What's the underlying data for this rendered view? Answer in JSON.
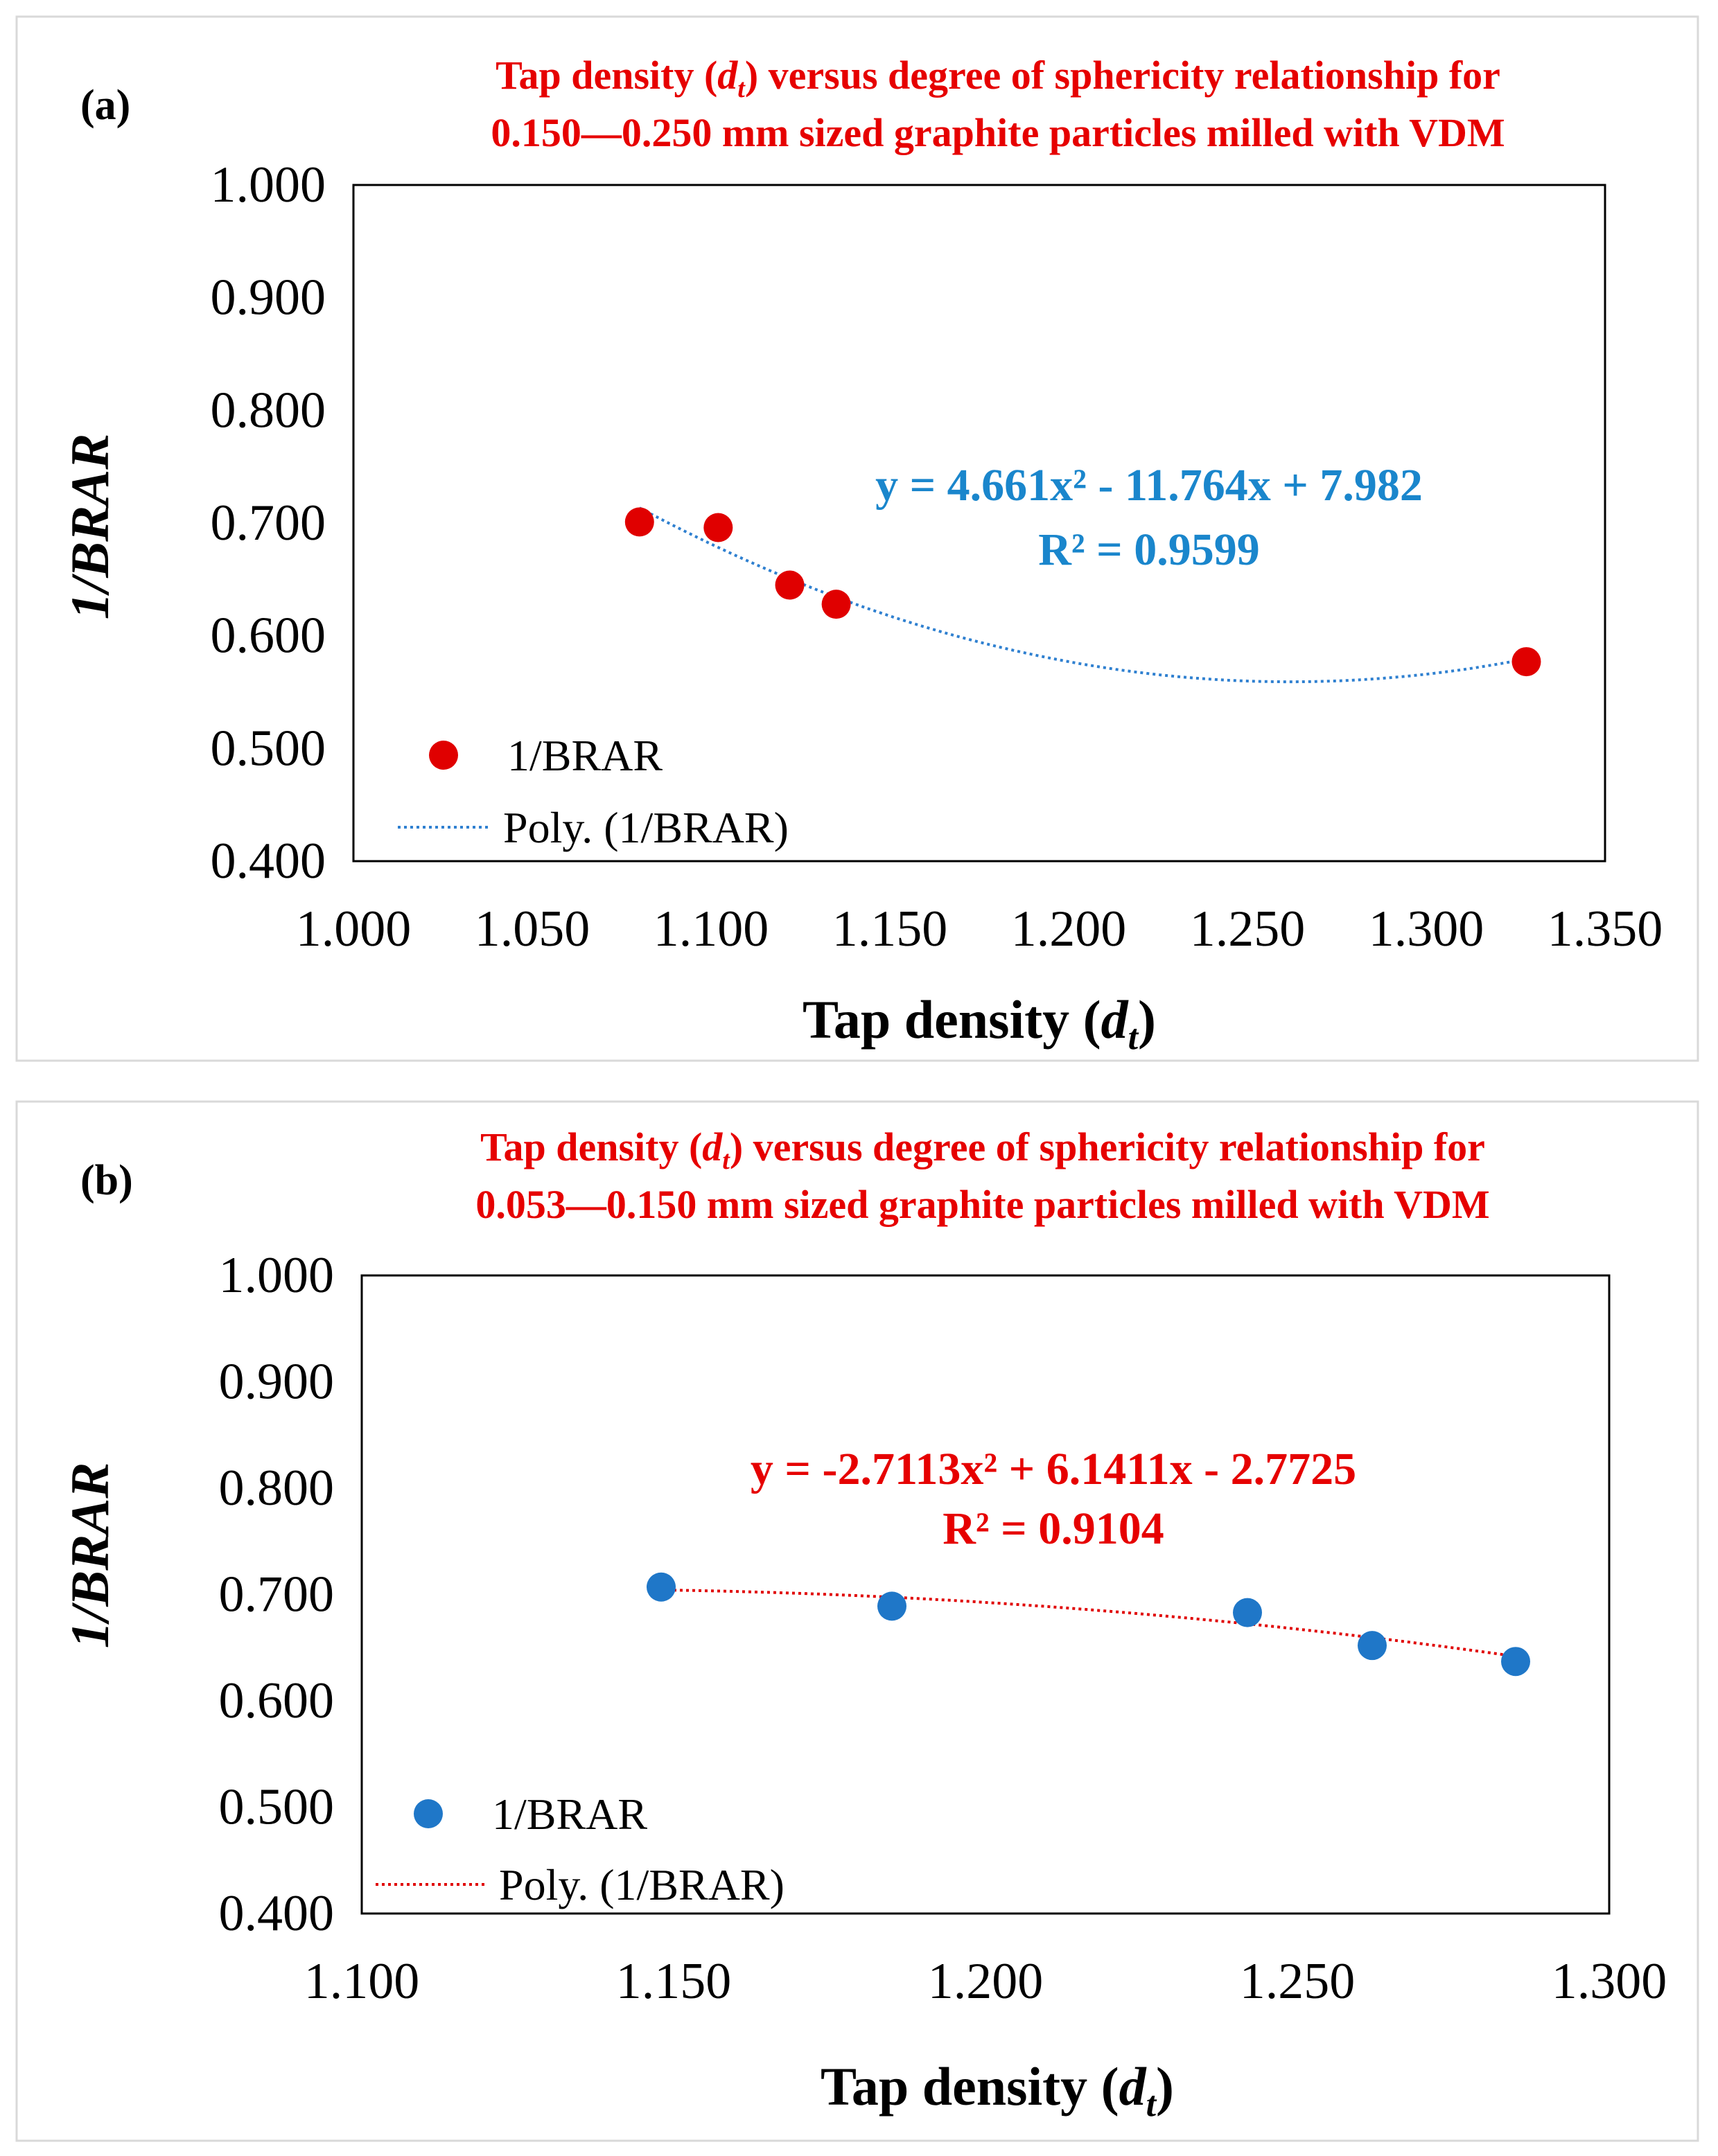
{
  "chart_data": [
    {
      "type": "scatter",
      "panel_label": "(a)",
      "title_lines": [
        [
          "Tap density (",
          "d",
          "t",
          ") versus degree of sphericity relationship for"
        ],
        [
          "0.150—0.250 mm sized graphite particles milled with VDM"
        ]
      ],
      "xlabel": {
        "main": "Tap density (",
        "var": "d",
        "sub": "t",
        "close": ")"
      },
      "ylabel": "1/BRAR",
      "xlim": [
        1.0,
        1.35
      ],
      "ylim": [
        0.4,
        1.0
      ],
      "x_ticks": [
        "1.000",
        "1.050",
        "1.100",
        "1.150",
        "1.200",
        "1.250",
        "1.300",
        "1.350"
      ],
      "y_ticks": [
        "1.000",
        "0.900",
        "0.800",
        "0.700",
        "0.600",
        "0.500",
        "0.400"
      ],
      "series": [
        {
          "name": "1/BRAR",
          "color": "#e00000",
          "x": [
            1.08,
            1.102,
            1.122,
            1.135,
            1.328
          ],
          "y": [
            0.701,
            0.696,
            0.645,
            0.628,
            0.577
          ]
        }
      ],
      "trendline": {
        "name": "Poly. (1/BRAR)",
        "color": "#2f80d0",
        "coefficients": [
          4.661,
          -11.764,
          7.982
        ],
        "x_range": [
          1.08,
          1.328
        ],
        "equation_label": "y = 4.661x² - 11.764x + 7.982",
        "r2_label": "R² = 0.9599",
        "label_color": "#1a86cc"
      },
      "title_color": "#e60000"
    },
    {
      "type": "scatter",
      "panel_label": "(b)",
      "title_lines": [
        [
          "Tap density (",
          "d",
          "t",
          ") versus degree of sphericity relationship for"
        ],
        [
          "0.053—0.150 mm sized graphite particles milled with VDM"
        ]
      ],
      "xlabel": {
        "main": "Tap density (",
        "var": "d",
        "sub": "t",
        "close": ")"
      },
      "ylabel": "1/BRAR",
      "xlim": [
        1.1,
        1.3
      ],
      "ylim": [
        0.4,
        1.0
      ],
      "x_ticks": [
        "1.100",
        "1.150",
        "1.200",
        "1.250",
        "1.300"
      ],
      "y_ticks": [
        "1.000",
        "0.900",
        "0.800",
        "0.700",
        "0.600",
        "0.500",
        "0.400"
      ],
      "series": [
        {
          "name": "1/BRAR",
          "color": "#1f77c8",
          "x": [
            1.148,
            1.185,
            1.242,
            1.262,
            1.285
          ],
          "y": [
            0.707,
            0.689,
            0.683,
            0.652,
            0.637
          ]
        }
      ],
      "trendline": {
        "name": "Poly. (1/BRAR)",
        "color": "#e00000",
        "coefficients": [
          -2.7113,
          6.1411,
          -2.7725
        ],
        "x_range": [
          1.148,
          1.285
        ],
        "equation_label": "y = -2.7113x² + 6.1411x - 2.7725",
        "r2_label": "R² = 0.9104",
        "label_color": "#e60000"
      },
      "title_color": "#e60000"
    }
  ]
}
